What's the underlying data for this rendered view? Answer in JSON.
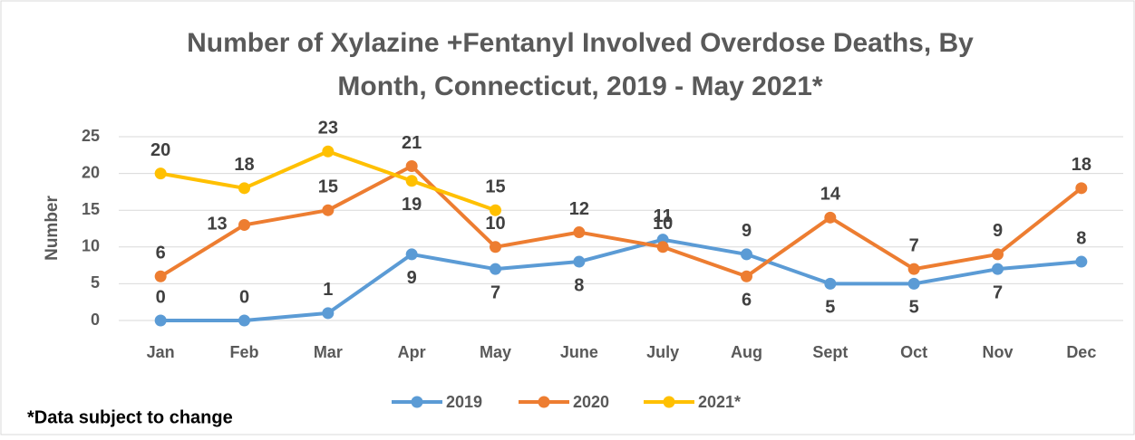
{
  "chart_data": {
    "type": "line",
    "title": [
      "Number of Xylazine +Fentanyl Involved Overdose Deaths, By",
      "Month, Connecticut, 2019 - May 2021*"
    ],
    "y_label": "Number",
    "footnote": "*Data subject to change",
    "categories": [
      "Jan",
      "Feb",
      "Mar",
      "Apr",
      "May",
      "June",
      "July",
      "Aug",
      "Sept",
      "Oct",
      "Nov",
      "Dec"
    ],
    "series": [
      {
        "name": "2019",
        "color": "#5b9bd5",
        "values": [
          0,
          0,
          1,
          9,
          7,
          8,
          11,
          9,
          5,
          5,
          7,
          8
        ]
      },
      {
        "name": "2020",
        "color": "#ed7d31",
        "values": [
          6,
          13,
          15,
          21,
          10,
          12,
          10,
          6,
          14,
          7,
          9,
          18
        ]
      },
      {
        "name": "2021*",
        "color": "#ffc000",
        "values": [
          20,
          18,
          23,
          19,
          15,
          null,
          null,
          null,
          null,
          null,
          null,
          null
        ]
      }
    ],
    "ylim": [
      0,
      25
    ],
    "yticks": [
      0,
      5,
      10,
      15,
      20,
      25
    ],
    "grid": true,
    "legend": "bottom"
  }
}
